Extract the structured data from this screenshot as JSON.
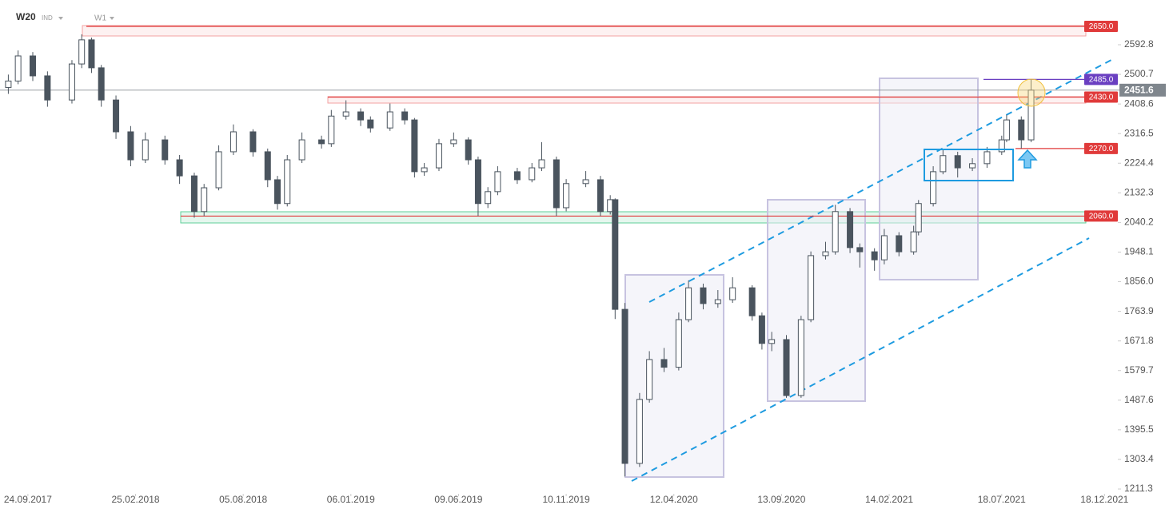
{
  "chart_data": {
    "type": "candlestick",
    "title": "W20",
    "subtitle": "IND",
    "timeframe": "W1",
    "x": [
      -4,
      -2,
      1,
      4,
      9,
      11,
      13,
      15,
      18,
      21,
      24,
      28,
      31,
      34,
      36,
      39,
      42,
      46,
      49,
      51,
      53,
      56,
      60,
      62,
      65,
      68,
      70,
      74,
      77,
      79,
      81,
      84,
      87,
      90,
      92,
      94,
      96,
      100,
      103,
      105,
      108,
      110,
      114,
      117,
      119,
      120,
      122,
      125,
      127,
      130,
      133,
      135,
      138,
      141,
      144,
      148,
      150,
      152,
      155,
      158,
      160,
      163,
      165,
      168,
      170,
      173,
      175,
      178,
      181,
      182,
      185,
      187,
      190,
      193,
      196,
      199,
      200,
      203,
      205
    ],
    "open": [
      2460,
      2480,
      2558,
      2496,
      2421,
      2533,
      2608,
      2521,
      2421,
      2322,
      2235,
      2297,
      2235,
      2185,
      2074,
      2148,
      2260,
      2322,
      2260,
      2173,
      2099,
      2235,
      2297,
      2285,
      2371,
      2384,
      2359,
      2334,
      2384,
      2359,
      2198,
      2210,
      2285,
      2297,
      2235,
      2099,
      2136,
      2198,
      2173,
      2210,
      2235,
      2086,
      2161,
      2173,
      2074,
      2111,
      1770,
      1291,
      1490,
      1614,
      1590,
      1738,
      1837,
      1788,
      1800,
      1837,
      1750,
      1664,
      1676,
      1502,
      1738,
      1937,
      1949,
      2074,
      1962,
      1949,
      1924,
      1999,
      1949,
      2011,
      2099,
      2198,
      2248,
      2210,
      2223,
      2260,
      2297,
      2359,
      2297
    ],
    "high": [
      2500,
      2575,
      2570,
      2510,
      2545,
      2625,
      2615,
      2530,
      2435,
      2340,
      2320,
      2310,
      2250,
      2195,
      2160,
      2280,
      2345,
      2330,
      2270,
      2185,
      2250,
      2320,
      2310,
      2390,
      2420,
      2395,
      2370,
      2410,
      2395,
      2365,
      2225,
      2300,
      2320,
      2305,
      2245,
      2150,
      2215,
      2210,
      2225,
      2290,
      2245,
      2175,
      2200,
      2185,
      2125,
      2115,
      1790,
      1510,
      1640,
      1650,
      1760,
      1860,
      1850,
      1830,
      1870,
      1845,
      1760,
      1700,
      1690,
      1750,
      1950,
      1980,
      2095,
      2085,
      1975,
      1960,
      2020,
      2010,
      2030,
      2110,
      2215,
      2265,
      2260,
      2240,
      2275,
      2310,
      2375,
      2370,
      2485
    ],
    "low": [
      2440,
      2470,
      2480,
      2400,
      2410,
      2520,
      2505,
      2400,
      2300,
      2215,
      2225,
      2220,
      2160,
      2055,
      2060,
      2140,
      2250,
      2245,
      2150,
      2080,
      2090,
      2225,
      2270,
      2275,
      2360,
      2340,
      2320,
      2325,
      2345,
      2180,
      2185,
      2200,
      2275,
      2220,
      2060,
      2085,
      2125,
      2160,
      2165,
      2200,
      2060,
      2075,
      2150,
      2060,
      2065,
      1740,
      1250,
      1280,
      1480,
      1575,
      1580,
      1730,
      1770,
      1775,
      1790,
      1735,
      1645,
      1640,
      1495,
      1495,
      1730,
      1925,
      1940,
      1945,
      1900,
      1890,
      1910,
      1935,
      1940,
      2000,
      2090,
      2190,
      2180,
      2200,
      2210,
      2250,
      2290,
      2270,
      2290
    ],
    "close": [
      2480,
      2558,
      2496,
      2421,
      2533,
      2608,
      2521,
      2421,
      2322,
      2235,
      2297,
      2235,
      2185,
      2074,
      2148,
      2260,
      2322,
      2260,
      2173,
      2099,
      2235,
      2297,
      2285,
      2371,
      2384,
      2359,
      2334,
      2384,
      2359,
      2198,
      2210,
      2285,
      2297,
      2235,
      2099,
      2136,
      2198,
      2173,
      2210,
      2235,
      2086,
      2161,
      2173,
      2074,
      2111,
      1770,
      1291,
      1490,
      1614,
      1590,
      1738,
      1837,
      1788,
      1800,
      1837,
      1750,
      1664,
      1676,
      1502,
      1738,
      1937,
      1949,
      2074,
      1962,
      1949,
      1924,
      1999,
      1949,
      2011,
      2099,
      2198,
      2248,
      2210,
      2223,
      2260,
      2297,
      2359,
      2297,
      2451.6
    ],
    "up_color": "#ffffff",
    "down_color": "#4a545e",
    "xlim": [
      -5.7,
      234
    ],
    "ylim": [
      1196.4,
      2731.9
    ],
    "xticks": [
      {
        "value": 0,
        "label": "24.09.2017"
      },
      {
        "value": 22,
        "label": "25.02.2018"
      },
      {
        "value": 44,
        "label": "05.08.2018"
      },
      {
        "value": 66,
        "label": "06.01.2019"
      },
      {
        "value": 88,
        "label": "09.06.2019"
      },
      {
        "value": 110,
        "label": "10.11.2019"
      },
      {
        "value": 132,
        "label": "12.04.2020"
      },
      {
        "value": 154,
        "label": "13.09.2020"
      },
      {
        "value": 176,
        "label": "14.02.2021"
      },
      {
        "value": 199,
        "label": "18.07.2021"
      },
      {
        "value": 220,
        "label": "18.12.2021"
      }
    ],
    "yticks": [
      1211.3,
      1303.4,
      1395.5,
      1487.6,
      1579.7,
      1671.8,
      1763.9,
      {
        "value": 1856,
        "label": "1856.0"
      },
      1948.1,
      2040.2,
      2132.3,
      2224.4,
      2316.5,
      2408.6,
      2500.7,
      2592.8
    ],
    "levels": [
      {
        "value": 2650,
        "label": "2650.0",
        "color": "#e03a3a"
      },
      {
        "value": 2485,
        "label": "2485.0",
        "color": "#6a3fc1"
      },
      {
        "value": 2430,
        "label": "2430.0",
        "color": "#e03a3a"
      },
      {
        "value": 2270,
        "label": "2270.0",
        "color": "#e03a3a"
      },
      {
        "value": 2060,
        "label": "2060.0",
        "color": "#e03a3a"
      }
    ],
    "last_price": 2451.6,
    "grid": false
  }
}
